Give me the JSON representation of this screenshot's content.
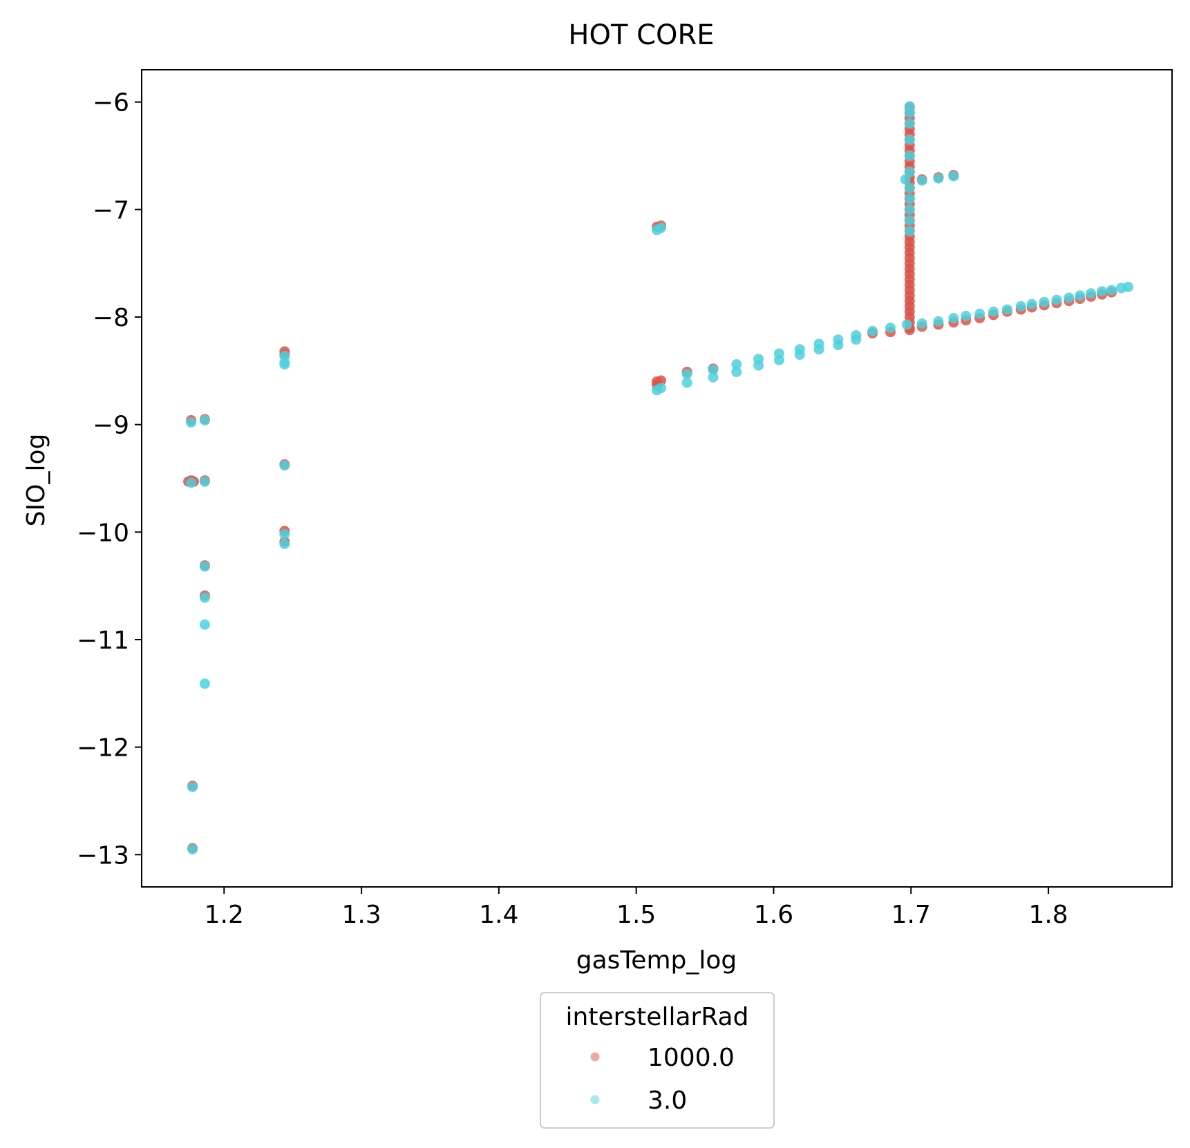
{
  "chart_data": {
    "type": "scatter",
    "title": "HOT CORE",
    "xlabel": "gasTemp_log",
    "ylabel": "SIO_log",
    "xlim": [
      1.14,
      1.89
    ],
    "ylim": [
      -13.3,
      -5.7
    ],
    "xticks": [
      1.2,
      1.3,
      1.4,
      1.5,
      1.6,
      1.7,
      1.8
    ],
    "xtick_labels": [
      "1.2",
      "1.3",
      "1.4",
      "1.5",
      "1.6",
      "1.7",
      "1.8"
    ],
    "yticks": [
      -6,
      -7,
      -8,
      -9,
      -10,
      -11,
      -12,
      -13
    ],
    "ytick_labels": [
      "−6",
      "−7",
      "−8",
      "−9",
      "−10",
      "−11",
      "−12",
      "−13"
    ],
    "grid": false,
    "legend": {
      "title": "interstellarRad",
      "placement": "bottom-center, below plot"
    },
    "series": [
      {
        "name": "1000.0",
        "color": "#d9534a",
        "points": [
          [
            1.176,
            -8.96
          ],
          [
            1.176,
            -9.52
          ],
          [
            1.174,
            -9.53
          ],
          [
            1.178,
            -9.53
          ],
          [
            1.177,
            -12.36
          ],
          [
            1.177,
            -12.94
          ],
          [
            1.186,
            -8.95
          ],
          [
            1.186,
            -9.52
          ],
          [
            1.186,
            -10.31
          ],
          [
            1.186,
            -10.59
          ],
          [
            1.244,
            -8.32
          ],
          [
            1.244,
            -8.35
          ],
          [
            1.244,
            -9.37
          ],
          [
            1.244,
            -9.99
          ],
          [
            1.244,
            -10.09
          ],
          [
            1.515,
            -7.16
          ],
          [
            1.518,
            -7.15
          ],
          [
            1.515,
            -8.6
          ],
          [
            1.518,
            -8.59
          ],
          [
            1.515,
            -8.63
          ],
          [
            1.537,
            -8.51
          ],
          [
            1.556,
            -8.48
          ],
          [
            1.672,
            -8.15
          ],
          [
            1.685,
            -8.14
          ],
          [
            1.699,
            -8.12
          ],
          [
            1.699,
            -6.05
          ],
          [
            1.699,
            -6.1
          ],
          [
            1.699,
            -6.15
          ],
          [
            1.699,
            -6.2
          ],
          [
            1.699,
            -6.25
          ],
          [
            1.699,
            -6.3
          ],
          [
            1.699,
            -6.35
          ],
          [
            1.699,
            -6.4
          ],
          [
            1.699,
            -6.45
          ],
          [
            1.699,
            -6.5
          ],
          [
            1.699,
            -6.55
          ],
          [
            1.699,
            -6.6
          ],
          [
            1.699,
            -6.65
          ],
          [
            1.699,
            -6.7
          ],
          [
            1.699,
            -6.75
          ],
          [
            1.699,
            -6.8
          ],
          [
            1.699,
            -6.85
          ],
          [
            1.699,
            -6.9
          ],
          [
            1.699,
            -6.95
          ],
          [
            1.699,
            -7.0
          ],
          [
            1.699,
            -7.05
          ],
          [
            1.699,
            -7.1
          ],
          [
            1.699,
            -7.15
          ],
          [
            1.699,
            -7.2
          ],
          [
            1.699,
            -7.25
          ],
          [
            1.699,
            -7.3
          ],
          [
            1.699,
            -7.35
          ],
          [
            1.699,
            -7.4
          ],
          [
            1.699,
            -7.45
          ],
          [
            1.699,
            -7.5
          ],
          [
            1.699,
            -7.55
          ],
          [
            1.699,
            -7.6
          ],
          [
            1.699,
            -7.65
          ],
          [
            1.699,
            -7.7
          ],
          [
            1.699,
            -7.75
          ],
          [
            1.699,
            -7.8
          ],
          [
            1.699,
            -7.85
          ],
          [
            1.699,
            -7.9
          ],
          [
            1.699,
            -7.95
          ],
          [
            1.699,
            -8.0
          ],
          [
            1.699,
            -8.05
          ],
          [
            1.699,
            -8.1
          ],
          [
            1.708,
            -6.72
          ],
          [
            1.72,
            -6.7
          ],
          [
            1.731,
            -6.68
          ],
          [
            1.708,
            -8.09
          ],
          [
            1.72,
            -8.07
          ],
          [
            1.731,
            -8.05
          ],
          [
            1.74,
            -8.03
          ],
          [
            1.75,
            -8.01
          ],
          [
            1.76,
            -7.98
          ],
          [
            1.77,
            -7.95
          ],
          [
            1.78,
            -7.93
          ],
          [
            1.788,
            -7.91
          ],
          [
            1.797,
            -7.89
          ],
          [
            1.806,
            -7.87
          ],
          [
            1.815,
            -7.85
          ],
          [
            1.823,
            -7.83
          ],
          [
            1.831,
            -7.81
          ],
          [
            1.839,
            -7.79
          ],
          [
            1.846,
            -7.77
          ]
        ]
      },
      {
        "name": "3.0",
        "color": "#4fd0dc",
        "points": [
          [
            1.176,
            -8.98
          ],
          [
            1.176,
            -9.54
          ],
          [
            1.177,
            -12.37
          ],
          [
            1.177,
            -12.95
          ],
          [
            1.186,
            -8.96
          ],
          [
            1.186,
            -9.53
          ],
          [
            1.186,
            -10.32
          ],
          [
            1.186,
            -10.61
          ],
          [
            1.186,
            -10.86
          ],
          [
            1.186,
            -11.41
          ],
          [
            1.244,
            -8.36
          ],
          [
            1.244,
            -8.42
          ],
          [
            1.244,
            -8.44
          ],
          [
            1.244,
            -9.38
          ],
          [
            1.244,
            -10.02
          ],
          [
            1.244,
            -10.11
          ],
          [
            1.515,
            -7.19
          ],
          [
            1.518,
            -7.17
          ],
          [
            1.515,
            -8.68
          ],
          [
            1.518,
            -8.66
          ],
          [
            1.537,
            -8.53
          ],
          [
            1.537,
            -8.61
          ],
          [
            1.556,
            -8.49
          ],
          [
            1.556,
            -8.56
          ],
          [
            1.573,
            -8.44
          ],
          [
            1.573,
            -8.51
          ],
          [
            1.589,
            -8.39
          ],
          [
            1.589,
            -8.45
          ],
          [
            1.604,
            -8.34
          ],
          [
            1.604,
            -8.4
          ],
          [
            1.619,
            -8.3
          ],
          [
            1.619,
            -8.35
          ],
          [
            1.633,
            -8.25
          ],
          [
            1.633,
            -8.3
          ],
          [
            1.647,
            -8.21
          ],
          [
            1.647,
            -8.26
          ],
          [
            1.66,
            -8.17
          ],
          [
            1.66,
            -8.21
          ],
          [
            1.672,
            -8.13
          ],
          [
            1.685,
            -8.1
          ],
          [
            1.697,
            -8.07
          ],
          [
            1.699,
            -6.04
          ],
          [
            1.699,
            -6.1
          ],
          [
            1.699,
            -6.2
          ],
          [
            1.699,
            -6.35
          ],
          [
            1.699,
            -6.5
          ],
          [
            1.699,
            -6.65
          ],
          [
            1.696,
            -6.72
          ],
          [
            1.699,
            -6.8
          ],
          [
            1.699,
            -6.9
          ],
          [
            1.699,
            -7.0
          ],
          [
            1.699,
            -7.1
          ],
          [
            1.699,
            -7.2
          ],
          [
            1.708,
            -6.73
          ],
          [
            1.72,
            -6.71
          ],
          [
            1.731,
            -6.69
          ],
          [
            1.708,
            -8.06
          ],
          [
            1.72,
            -8.04
          ],
          [
            1.731,
            -8.01
          ],
          [
            1.74,
            -7.99
          ],
          [
            1.75,
            -7.97
          ],
          [
            1.76,
            -7.95
          ],
          [
            1.77,
            -7.93
          ],
          [
            1.78,
            -7.9
          ],
          [
            1.788,
            -7.88
          ],
          [
            1.797,
            -7.86
          ],
          [
            1.806,
            -7.84
          ],
          [
            1.815,
            -7.82
          ],
          [
            1.823,
            -7.8
          ],
          [
            1.831,
            -7.78
          ],
          [
            1.839,
            -7.76
          ],
          [
            1.846,
            -7.75
          ],
          [
            1.853,
            -7.73
          ],
          [
            1.858,
            -7.72
          ]
        ]
      }
    ]
  }
}
